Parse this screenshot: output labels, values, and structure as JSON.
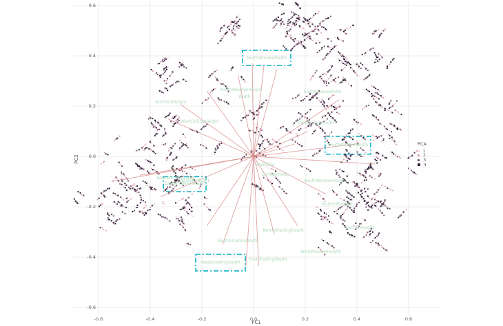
{
  "figure": {
    "kind": "pca-biplot-scatter"
  },
  "axes": {
    "x": {
      "label": "PC1",
      "tick_values": [
        -0.6,
        -0.4,
        -0.2,
        0.0,
        0.2,
        0.4,
        0.6
      ],
      "tick_labels": [
        "-0.6",
        "-0.4",
        "-0.2",
        "0.0",
        "0.2",
        "0.4",
        "0.6"
      ]
    },
    "y": {
      "label": "PC2",
      "tick_values": [
        0.6,
        0.4,
        0.2,
        0.0,
        -0.2,
        -0.4,
        -0.6
      ],
      "tick_labels": [
        "0.6",
        "0.4",
        "0.2",
        "0.0",
        "-0.2",
        "-0.4",
        "-0.6"
      ]
    }
  },
  "legend": {
    "title": "PCA",
    "items": [
      {
        "label": "1",
        "color": "#f2d3da",
        "size": 2.6
      },
      {
        "label": "2",
        "color": "#d89aae",
        "size": 3.0
      },
      {
        "label": "3",
        "color": "#6b4767",
        "size": 3.4
      },
      {
        "label": "4",
        "color": "#2a1e33",
        "size": 3.8
      }
    ]
  },
  "colors": {
    "background": "#ffffff",
    "grid": "#e6e6e6",
    "tick_text": "#5a5a5a",
    "arrow": "#d98b8b",
    "loading_label": "#abd8b8",
    "highlight_box": "#25b8c9",
    "group_colors": [
      "#f2d3da",
      "#d89aae",
      "#6b4767",
      "#2a1e33"
    ]
  },
  "chart_data": {
    "type": "scatter",
    "title": "",
    "xlabel": "PC1",
    "ylabel": "PC2",
    "xlim": [
      -0.72,
      0.72
    ],
    "ylim": [
      -0.62,
      0.62
    ],
    "grid": true,
    "legend_position": "right",
    "group_weights": [
      0.16,
      0.22,
      0.26,
      0.36
    ],
    "points_per_streak": [
      3,
      8
    ],
    "clusters": [
      {
        "name": "top-left-small",
        "cx": -0.075,
        "cy": 0.526,
        "sx": 0.037,
        "sy": 0.044,
        "streaks": 11
      },
      {
        "name": "top-middle",
        "cx": 0.171,
        "cy": 0.54,
        "sx": 0.101,
        "sy": 0.088,
        "streaks": 36
      },
      {
        "name": "upper-right-arc",
        "cx": 0.32,
        "cy": 0.362,
        "sx": 0.085,
        "sy": 0.104,
        "streaks": 30
      },
      {
        "name": "right-arc-sparse",
        "cx": 0.48,
        "cy": 0.348,
        "sx": 0.043,
        "sy": 0.123,
        "streaks": 14
      },
      {
        "name": "right-mid-sparse",
        "cx": 0.504,
        "cy": 0.142,
        "sx": 0.059,
        "sy": 0.068,
        "streaks": 11
      },
      {
        "name": "right-dense",
        "cx": 0.411,
        "cy": -0.12,
        "sx": 0.12,
        "sy": 0.185,
        "streaks": 85
      },
      {
        "name": "center-right",
        "cx": 0.24,
        "cy": 0.129,
        "sx": 0.08,
        "sy": 0.132,
        "streaks": 22
      },
      {
        "name": "center-sparse",
        "cx": 0.027,
        "cy": 0.047,
        "sx": 0.128,
        "sy": 0.151,
        "streaks": 30
      },
      {
        "name": "left-dense",
        "cx": -0.389,
        "cy": -0.14,
        "sx": 0.192,
        "sy": 0.137,
        "streaks": 75
      },
      {
        "name": "left-upper",
        "cx": -0.315,
        "cy": 0.115,
        "sx": 0.165,
        "sy": 0.123,
        "streaks": 28
      },
      {
        "name": "left-isolated",
        "cx": -0.336,
        "cy": 0.34,
        "sx": 0.048,
        "sy": 0.06,
        "streaks": 11
      },
      {
        "name": "mid-upper-sparse",
        "cx": -0.115,
        "cy": 0.279,
        "sx": 0.059,
        "sy": 0.088,
        "streaks": 8
      }
    ],
    "loadings": [
      {
        "x": -0.005,
        "y": 0.37,
        "label": "NorthWindowWidth",
        "labelX": 0.051,
        "labelY": 0.392
      },
      {
        "x": 0.04,
        "y": 0.36,
        "label": "NorthWindowHeight",
        "labelX": -0.048,
        "labelY": 0.266
      },
      {
        "x": 0.09,
        "y": 0.345,
        "label": "EastWindowWidth",
        "labelX": 0.267,
        "labelY": 0.258
      },
      {
        "x": -0.06,
        "y": 0.325,
        "label": "Width",
        "labelX": -0.035,
        "labelY": 0.238
      },
      {
        "x": -0.18,
        "y": 0.26,
        "label": "NorthSillHeight",
        "labelX": -0.32,
        "labelY": 0.216
      },
      {
        "x": -0.28,
        "y": 0.205,
        "label": "WestCeilingHeight",
        "labelX": -0.21,
        "labelY": 0.14
      },
      {
        "x": -0.33,
        "y": 0.148,
        "label": "",
        "labelX": 0,
        "labelY": 0
      },
      {
        "x": -0.44,
        "y": -0.075,
        "label": "WestWindowWidth",
        "labelX": -0.301,
        "labelY": -0.085
      },
      {
        "x": -0.55,
        "y": -0.1,
        "label": "EastWindowHeight",
        "labelX": -0.269,
        "labelY": -0.107
      },
      {
        "x": -0.36,
        "y": -0.16,
        "label": "WestSillHeight",
        "labelX": -0.229,
        "labelY": -0.096
      },
      {
        "x": -0.18,
        "y": -0.275,
        "label": "SouthShadingDepth",
        "labelX": -0.061,
        "labelY": -0.334
      },
      {
        "x": -0.12,
        "y": -0.35,
        "label": "WestShadingDepth",
        "labelX": -0.128,
        "labelY": -0.42
      },
      {
        "x": -0.03,
        "y": -0.435,
        "label": "EastShadingDepth",
        "labelX": 0.056,
        "labelY": -0.408
      },
      {
        "x": 0.02,
        "y": -0.435,
        "label": "NorthShadingDepth",
        "labelX": 0.115,
        "labelY": -0.293
      },
      {
        "x": 0.08,
        "y": -0.31,
        "label": "WestWindowHeight",
        "labelX": 0.259,
        "labelY": -0.378
      },
      {
        "x": 0.17,
        "y": -0.275,
        "label": "SouthWindowHeight",
        "labelX": 0.277,
        "labelY": -0.096
      },
      {
        "x": 0.28,
        "y": -0.15,
        "label": "SouthSillHeight",
        "labelX": 0.323,
        "labelY": -0.189
      },
      {
        "x": 0.47,
        "y": -0.03,
        "label": "SouthWindowWidth",
        "labelX": 0.365,
        "labelY": 0.047
      },
      {
        "x": 0.4,
        "y": 0.05,
        "label": "EastSillHeight",
        "labelX": 0.411,
        "labelY": -0.282
      },
      {
        "x": 0.33,
        "y": 0.225,
        "label": "EastCeilingHeight",
        "labelX": 0.24,
        "labelY": 0.134
      },
      {
        "x": 0.21,
        "y": 0.1,
        "label": "WallRatio",
        "labelX": 0.045,
        "labelY": -0.033
      },
      {
        "x": 0.16,
        "y": 0.05,
        "label": "CorridorRatio",
        "labelX": 0.083,
        "labelY": -0.071
      }
    ],
    "highlight_boxes": [
      {
        "x": -0.043,
        "y": 0.422,
        "w": 0.187,
        "h": 0.06
      },
      {
        "x": 0.277,
        "y": 0.08,
        "w": 0.176,
        "h": 0.071
      },
      {
        "x": -0.224,
        "y": -0.389,
        "w": 0.192,
        "h": 0.066
      },
      {
        "x": -0.349,
        "y": -0.08,
        "w": 0.165,
        "h": 0.06
      }
    ]
  }
}
